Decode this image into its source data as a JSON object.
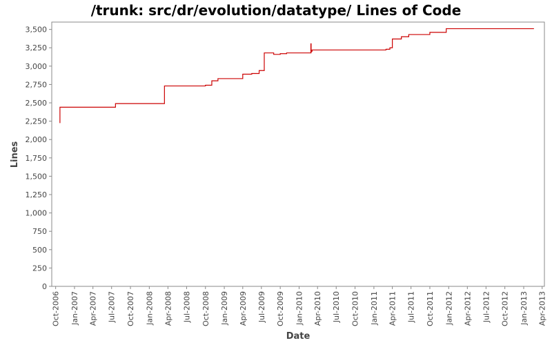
{
  "chart_data": {
    "type": "line",
    "title": "/trunk: src/dr/evolution/datatype/ Lines of Code",
    "xlabel": "Date",
    "ylabel": "Lines",
    "ylim": [
      0,
      3600
    ],
    "yticks": [
      0,
      250,
      500,
      750,
      1000,
      1250,
      1500,
      1750,
      2000,
      2250,
      2500,
      2750,
      3000,
      3250,
      3500
    ],
    "ytick_labels": [
      "0",
      "250",
      "500",
      "750",
      "1,000",
      "1,250",
      "1,500",
      "1,750",
      "2,000",
      "2,250",
      "2,500",
      "2,750",
      "3,000",
      "3,250",
      "3,500"
    ],
    "xlim": [
      "2006-09-12",
      "2013-04-12"
    ],
    "xticks": [
      "2006-10-01",
      "2007-01-01",
      "2007-04-01",
      "2007-07-01",
      "2007-10-01",
      "2008-01-01",
      "2008-04-01",
      "2008-07-01",
      "2008-10-01",
      "2009-01-01",
      "2009-04-01",
      "2009-07-01",
      "2009-10-01",
      "2010-01-01",
      "2010-04-01",
      "2010-07-01",
      "2010-10-01",
      "2011-01-01",
      "2011-04-01",
      "2011-07-01",
      "2011-10-01",
      "2012-01-01",
      "2012-04-01",
      "2012-07-01",
      "2012-10-01",
      "2013-01-01",
      "2013-04-01"
    ],
    "xtick_labels": [
      "Oct-2006",
      "Jan-2007",
      "Apr-2007",
      "Jul-2007",
      "Oct-2007",
      "Jan-2008",
      "Apr-2008",
      "Jul-2008",
      "Oct-2008",
      "Jan-2009",
      "Apr-2009",
      "Jul-2009",
      "Oct-2009",
      "Jan-2010",
      "Apr-2010",
      "Jul-2010",
      "Oct-2010",
      "Jan-2011",
      "Apr-2011",
      "Jul-2011",
      "Oct-2011",
      "Jan-2012",
      "Apr-2012",
      "Jul-2012",
      "Oct-2012",
      "Jan-2013",
      "Apr-2013"
    ],
    "grid": false,
    "series": [
      {
        "color": "#cc0000",
        "step": true,
        "x": [
          "2006-10-20",
          "2006-10-22",
          "2007-07-20",
          "2008-03-15",
          "2008-10-01",
          "2008-11-01",
          "2008-12-01",
          "2009-04-01",
          "2009-05-15",
          "2009-06-20",
          "2009-07-15",
          "2009-08-30",
          "2009-10-01",
          "2009-11-01",
          "2010-02-28",
          "2010-03-05",
          "2011-03-01",
          "2011-03-20",
          "2011-04-01",
          "2011-05-15",
          "2011-06-20",
          "2011-10-01",
          "2011-12-20",
          "2013-02-20"
        ],
        "y": [
          2230,
          2440,
          2490,
          2730,
          2740,
          2800,
          2830,
          2890,
          2900,
          2940,
          3180,
          3160,
          3170,
          3180,
          3200,
          3220,
          3230,
          3250,
          3370,
          3400,
          3430,
          3460,
          3510,
          3510
        ]
      }
    ],
    "spikes": [
      {
        "x": "2010-02-28",
        "y_from": 3180,
        "y_to": 3310
      }
    ]
  }
}
